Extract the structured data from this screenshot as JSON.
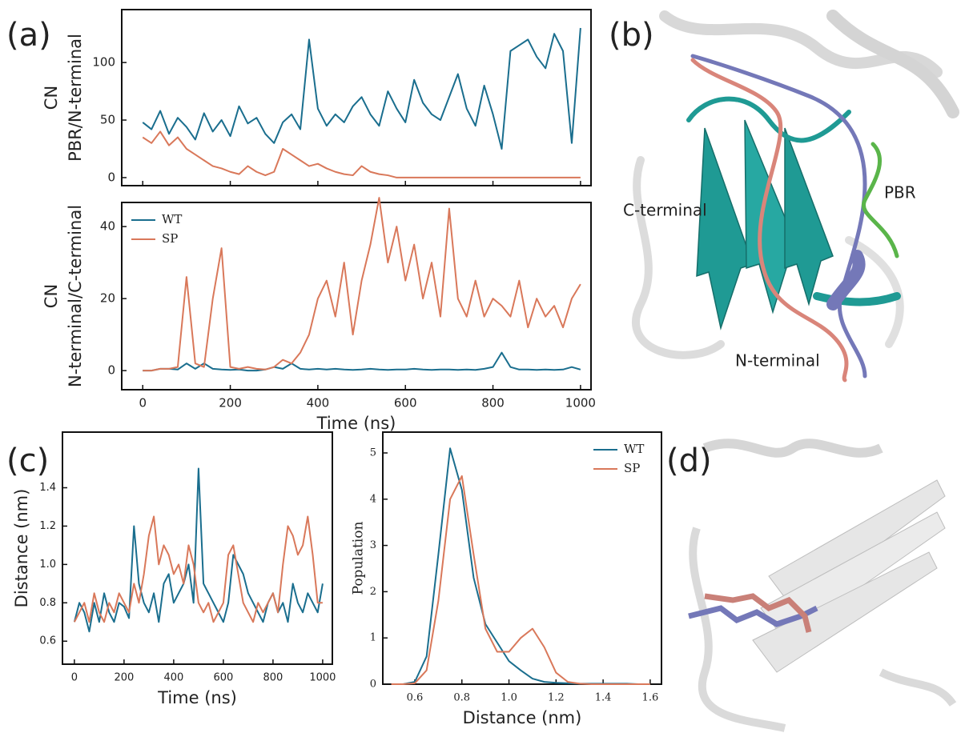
{
  "panel_labels": [
    "(a)",
    "(b)",
    "(c)",
    "(d)"
  ],
  "structure_labels": [
    "C-terminal",
    "PBR",
    "N-terminal"
  ],
  "chart_data": [
    {
      "type": "line",
      "ylabel": [
        "CN",
        "PBR/N-terminal"
      ],
      "x": [
        0,
        20,
        40,
        60,
        80,
        100,
        120,
        140,
        160,
        180,
        200,
        220,
        240,
        260,
        280,
        300,
        320,
        340,
        360,
        380,
        400,
        420,
        440,
        460,
        480,
        500,
        520,
        540,
        560,
        580,
        600,
        620,
        640,
        660,
        680,
        700,
        720,
        740,
        760,
        780,
        800,
        820,
        840,
        860,
        880,
        900,
        920,
        940,
        960,
        980,
        1000
      ],
      "xlim": [
        -48,
        1024
      ],
      "xticks": [
        0,
        200,
        400,
        600,
        800,
        1000
      ],
      "show_xtick_labels": false,
      "ylim": [
        -7,
        146
      ],
      "yticks": [
        0,
        50,
        100
      ],
      "series": [
        {
          "color": "#1a6e8e",
          "values": [
            48,
            42,
            58,
            38,
            52,
            44,
            33,
            56,
            40,
            50,
            36,
            62,
            47,
            52,
            38,
            30,
            48,
            55,
            42,
            120,
            60,
            45,
            55,
            48,
            62,
            70,
            55,
            45,
            75,
            60,
            48,
            85,
            65,
            55,
            50,
            70,
            90,
            60,
            45,
            80,
            55,
            25,
            110,
            115,
            120,
            105,
            95,
            125,
            110,
            30,
            130
          ]
        },
        {
          "color": "#d9785a",
          "values": [
            35,
            30,
            40,
            28,
            35,
            25,
            20,
            15,
            10,
            8,
            5,
            3,
            10,
            5,
            2,
            5,
            25,
            20,
            15,
            10,
            12,
            8,
            5,
            3,
            2,
            10,
            5,
            3,
            2,
            0,
            0,
            0,
            0,
            0,
            0,
            0,
            0,
            0,
            0,
            0,
            0,
            0,
            0,
            0,
            0,
            0,
            0,
            0,
            0,
            0,
            0
          ]
        }
      ]
    },
    {
      "type": "line",
      "ylabel": [
        "CN",
        "N-terminal/C-terminal"
      ],
      "xlabel": "Time (ns)",
      "x": [
        0,
        20,
        40,
        60,
        80,
        100,
        120,
        140,
        160,
        180,
        200,
        220,
        240,
        260,
        280,
        300,
        320,
        340,
        360,
        380,
        400,
        420,
        440,
        460,
        480,
        500,
        520,
        540,
        560,
        580,
        600,
        620,
        640,
        660,
        680,
        700,
        720,
        740,
        760,
        780,
        800,
        820,
        840,
        860,
        880,
        900,
        920,
        940,
        960,
        980,
        1000
      ],
      "xlim": [
        -48,
        1024
      ],
      "xticks": [
        0,
        200,
        400,
        600,
        800,
        1000
      ],
      "show_xtick_labels": true,
      "ylim": [
        -5.3,
        46.7
      ],
      "yticks": [
        0,
        20,
        40
      ],
      "legend": "upper left",
      "series": [
        {
          "name": "WT",
          "color": "#1a6e8e",
          "values": [
            0,
            0,
            0.5,
            0.5,
            0.3,
            2,
            0.5,
            2,
            0.5,
            0.3,
            0.2,
            0.3,
            0,
            0,
            0.3,
            1,
            0.5,
            2,
            0.5,
            0.3,
            0.5,
            0.3,
            0.5,
            0.3,
            0.2,
            0.3,
            0.5,
            0.3,
            0.2,
            0.3,
            0.3,
            0.5,
            0.3,
            0.2,
            0.3,
            0.3,
            0.2,
            0.3,
            0.2,
            0.5,
            1,
            5,
            1,
            0.3,
            0.3,
            0.2,
            0.3,
            0.2,
            0.3,
            1,
            0.3
          ]
        },
        {
          "name": "SP",
          "color": "#d9785a",
          "values": [
            0,
            0,
            0.5,
            0.5,
            1,
            26,
            2,
            1,
            20,
            34,
            1,
            0.5,
            1,
            0.5,
            0.3,
            1,
            3,
            2,
            5,
            10,
            20,
            25,
            15,
            30,
            10,
            25,
            35,
            48,
            30,
            40,
            25,
            35,
            20,
            30,
            15,
            45,
            20,
            15,
            25,
            15,
            20,
            18,
            15,
            25,
            12,
            20,
            15,
            18,
            12,
            20,
            24
          ]
        }
      ]
    },
    {
      "type": "line",
      "ylabel": [
        "Distance (nm)"
      ],
      "xlabel": "Time (ns)",
      "x": [
        0,
        20,
        40,
        60,
        80,
        100,
        120,
        140,
        160,
        180,
        200,
        220,
        240,
        260,
        280,
        300,
        320,
        340,
        360,
        380,
        400,
        420,
        440,
        460,
        480,
        500,
        520,
        540,
        560,
        580,
        600,
        620,
        640,
        660,
        680,
        700,
        720,
        740,
        760,
        780,
        800,
        820,
        840,
        860,
        880,
        900,
        920,
        940,
        960,
        980,
        1000
      ],
      "xlim": [
        -48,
        1039
      ],
      "xticks": [
        0,
        200,
        400,
        600,
        800,
        1000
      ],
      "show_xtick_labels": true,
      "ylim": [
        0.48,
        1.69
      ],
      "yticks": [
        0.6,
        0.8,
        {
          "value": 1,
          "label": "1.0"
        },
        1.2,
        1.4
      ],
      "series": [
        {
          "color": "#1a6e8e",
          "values": [
            0.7,
            0.8,
            0.75,
            0.65,
            0.8,
            0.7,
            0.85,
            0.75,
            0.7,
            0.8,
            0.78,
            0.72,
            1.2,
            0.9,
            0.8,
            0.75,
            0.85,
            0.7,
            0.9,
            0.95,
            0.8,
            0.85,
            0.9,
            1.0,
            0.8,
            1.5,
            0.9,
            0.85,
            0.8,
            0.75,
            0.7,
            0.8,
            1.05,
            1.0,
            0.95,
            0.85,
            0.8,
            0.75,
            0.7,
            0.8,
            0.85,
            0.75,
            0.8,
            0.7,
            0.9,
            0.8,
            0.75,
            0.85,
            0.8,
            0.75,
            0.9
          ]
        },
        {
          "color": "#d9785a",
          "values": [
            0.7,
            0.75,
            0.8,
            0.7,
            0.85,
            0.75,
            0.7,
            0.8,
            0.75,
            0.85,
            0.8,
            0.75,
            0.9,
            0.8,
            0.95,
            1.15,
            1.25,
            1.0,
            1.1,
            1.05,
            0.95,
            1.0,
            0.9,
            1.1,
            1.0,
            0.8,
            0.75,
            0.8,
            0.7,
            0.75,
            0.8,
            1.05,
            1.1,
            0.95,
            0.8,
            0.75,
            0.7,
            0.8,
            0.75,
            0.8,
            0.85,
            0.75,
            1.0,
            1.2,
            1.15,
            1.05,
            1.1,
            1.25,
            1.05,
            0.8,
            0.8
          ]
        }
      ]
    },
    {
      "type": "line",
      "ylabel": [
        "Population"
      ],
      "xlabel": "Distance (nm)",
      "x": [
        0.5,
        0.55,
        0.6,
        0.65,
        0.7,
        0.75,
        0.8,
        0.85,
        0.9,
        0.95,
        1.0,
        1.05,
        1.1,
        1.15,
        1.2,
        1.25,
        1.3,
        1.35,
        1.4,
        1.45,
        1.5,
        1.55,
        1.6
      ],
      "xlim": [
        0.464,
        1.648
      ],
      "xticks": [
        0.6,
        0.8,
        {
          "value": 1,
          "label": "1.0"
        },
        1.2,
        1.4,
        1.6
      ],
      "show_xtick_labels": true,
      "ylim": [
        0,
        5.45
      ],
      "yticks": [
        0,
        1,
        2,
        3,
        4,
        5
      ],
      "legend": "upper right",
      "series": [
        {
          "name": "WT",
          "color": "#1a6e8e",
          "values": [
            0,
            0,
            0.05,
            0.6,
            2.8,
            5.1,
            4.2,
            2.3,
            1.3,
            0.9,
            0.5,
            0.3,
            0.12,
            0.05,
            0.03,
            0.02,
            0.01,
            0.01,
            0.01,
            0.01,
            0.01,
            0,
            0
          ]
        },
        {
          "name": "SP",
          "color": "#d9785a",
          "values": [
            0,
            0,
            0.02,
            0.3,
            1.8,
            4.0,
            4.5,
            2.8,
            1.2,
            0.7,
            0.7,
            1.0,
            1.2,
            0.8,
            0.25,
            0.05,
            0.01,
            0,
            0,
            0,
            0,
            0,
            0
          ]
        }
      ]
    }
  ]
}
